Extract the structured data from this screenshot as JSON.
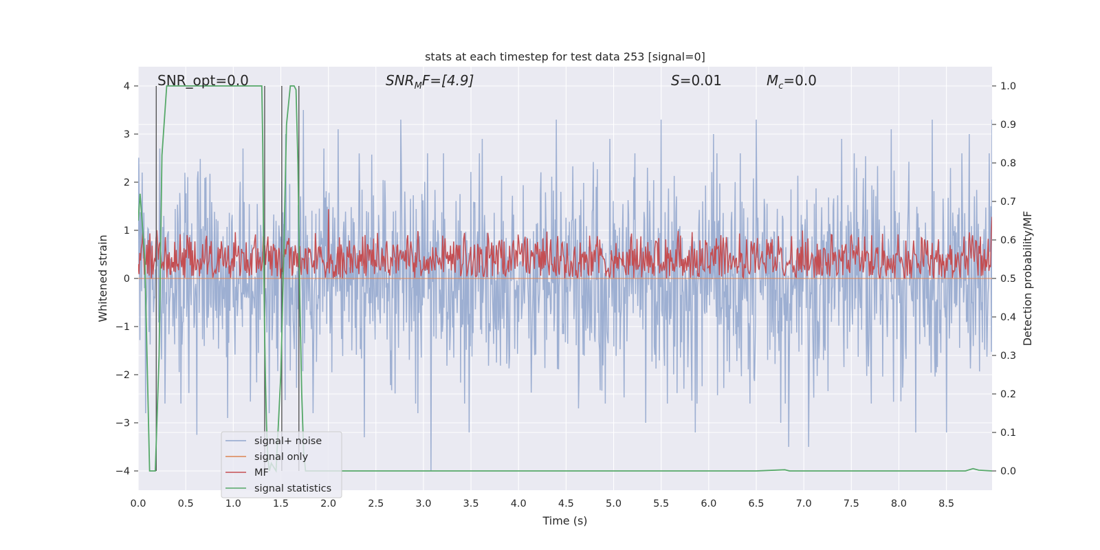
{
  "chart_data": {
    "type": "line",
    "title": "stats at each timestep for test data 253 [signal=0]",
    "xlabel": "Time (s)",
    "ylabel_left": "Whitened strain",
    "ylabel_right": "Detection probability/MF",
    "xlim": [
      0.0,
      8.98
    ],
    "ylim_left": [
      -4.4,
      4.4
    ],
    "ylim_right": [
      -0.05,
      1.05
    ],
    "xticks": [
      "0.0",
      "0.5",
      "1.0",
      "1.5",
      "2.0",
      "2.5",
      "3.0",
      "3.5",
      "4.0",
      "4.5",
      "5.0",
      "5.5",
      "6.0",
      "6.5",
      "7.0",
      "7.5",
      "8.0",
      "8.5"
    ],
    "yticks_left": [
      "−4",
      "−3",
      "−2",
      "−1",
      "0",
      "1",
      "2",
      "3",
      "4"
    ],
    "yticks_right": [
      "0.0",
      "0.1",
      "0.2",
      "0.3",
      "0.4",
      "0.5",
      "0.6",
      "0.7",
      "0.8",
      "0.9",
      "1.0"
    ],
    "grid": true,
    "legend_position": "lower-left",
    "annotations": {
      "snr_opt": "SNR_opt=0.0",
      "snr_mf_label": "SNR",
      "snr_mf_sub": "M",
      "snr_mf_tail": "F=[4.9]",
      "s_label": "S",
      "s_value": "=0.01",
      "mc_label": "M",
      "mc_sub": "c",
      "mc_value": "=0.0"
    },
    "series": [
      {
        "name": "signal+ noise",
        "color": "#8fa5cd",
        "axis": "left",
        "description": "white noise strain, peaks up to about ±3.7",
        "peaks": [
          [
            0.04,
            2.2
          ],
          [
            0.08,
            -2.8
          ],
          [
            0.23,
            2.7
          ],
          [
            0.45,
            -2.6
          ],
          [
            0.62,
            -3.25
          ],
          [
            0.94,
            -2.9
          ],
          [
            1.1,
            2.7
          ],
          [
            1.38,
            -2.8
          ],
          [
            1.55,
            3.0
          ],
          [
            1.74,
            3.5
          ],
          [
            1.84,
            -2.8
          ],
          [
            1.95,
            2.7
          ],
          [
            2.1,
            3.1
          ],
          [
            2.38,
            -3.3
          ],
          [
            2.76,
            3.3
          ],
          [
            2.94,
            -2.8
          ],
          [
            3.08,
            -4.0
          ],
          [
            3.48,
            -3.2
          ],
          [
            3.62,
            2.9
          ],
          [
            4.4,
            3.3
          ],
          [
            4.63,
            -2.7
          ],
          [
            4.96,
            2.9
          ],
          [
            5.34,
            -3.0
          ],
          [
            5.5,
            3.3
          ],
          [
            5.86,
            -3.2
          ],
          [
            6.05,
            3.0
          ],
          [
            6.5,
            3.3
          ],
          [
            6.76,
            -3.0
          ],
          [
            6.84,
            -3.5
          ],
          [
            7.05,
            -3.5
          ],
          [
            7.4,
            2.9
          ],
          [
            7.92,
            3.1
          ],
          [
            8.18,
            -3.2
          ],
          [
            8.35,
            3.3
          ],
          [
            8.5,
            -3.2
          ],
          [
            8.74,
            3.0
          ],
          [
            8.98,
            3.3
          ]
        ]
      },
      {
        "name": "signal only",
        "color": "#dd8452",
        "axis": "left",
        "y": 0
      },
      {
        "name": "MF",
        "color": "#c44e52",
        "axis": "right",
        "band": [
          0.5,
          0.63
        ],
        "peaks": [
          [
            2.0,
            0.68
          ],
          [
            8.98,
            0.66
          ]
        ]
      },
      {
        "name": "signal statistics",
        "color": "#55a868",
        "axis": "right",
        "x": [
          0.0,
          0.02,
          0.07,
          0.12,
          0.18,
          0.22,
          0.25,
          0.3,
          0.5,
          1.0,
          1.3,
          1.31,
          1.32,
          1.33,
          1.34,
          1.35,
          1.36,
          1.37,
          1.38,
          1.4,
          1.45,
          1.5,
          1.53,
          1.56,
          1.6,
          1.64,
          1.66,
          1.68,
          1.7,
          1.72,
          1.74,
          1.76,
          2.0,
          3.0,
          6.5,
          6.8,
          6.85,
          7.0,
          8.7,
          8.78,
          8.84,
          8.98
        ],
        "y": [
          0.65,
          0.72,
          0.55,
          0.0,
          0.0,
          0.3,
          0.82,
          1.0,
          1.0,
          1.0,
          1.0,
          0.85,
          0.55,
          0.35,
          0.22,
          0.12,
          0.05,
          0.02,
          0.0,
          0.02,
          0.0,
          0.25,
          0.55,
          0.9,
          1.0,
          1.0,
          0.99,
          0.8,
          0.45,
          0.2,
          0.05,
          0.0,
          0.0,
          0.0,
          0.0,
          0.003,
          0.0,
          0.0,
          0.0,
          0.006,
          0.002,
          0.0
        ]
      }
    ],
    "vlines": {
      "color": "#555555",
      "x": [
        0.19,
        1.33,
        1.51,
        1.69
      ]
    }
  }
}
